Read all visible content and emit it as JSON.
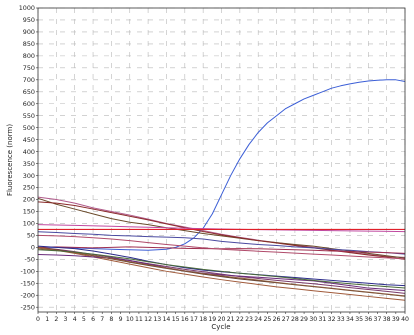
{
  "chart_data": {
    "type": "line",
    "xlabel": "Cycle",
    "ylabel": "Fluorescence (norm)",
    "xlim": [
      0,
      40
    ],
    "ylim": [
      -270,
      1000
    ],
    "grid": true,
    "y_ticks": [
      "1000",
      "950",
      "900",
      "850",
      "800",
      "750",
      "700",
      "650",
      "600",
      "550",
      "500",
      "450",
      "400",
      "350",
      "300",
      "250",
      "200",
      "150",
      "100",
      "50",
      "0",
      "-50",
      "-100",
      "-150",
      "-200",
      "-250"
    ],
    "y_tick_values": [
      1000,
      950,
      900,
      850,
      800,
      750,
      700,
      650,
      600,
      550,
      500,
      450,
      400,
      350,
      300,
      250,
      200,
      150,
      100,
      50,
      0,
      -50,
      -100,
      -150,
      -200,
      -250
    ],
    "x_ticks": [
      "0",
      "1",
      "2",
      "3",
      "4",
      "5",
      "6",
      "7",
      "8",
      "9",
      "10",
      "11",
      "12",
      "13",
      "14",
      "15",
      "16",
      "17",
      "18",
      "19",
      "20",
      "21",
      "22",
      "23",
      "24",
      "25",
      "26",
      "27",
      "28",
      "29",
      "30",
      "31",
      "32",
      "33",
      "34",
      "35",
      "36",
      "37",
      "38",
      "39",
      "40"
    ],
    "x_tick_values": [
      0,
      1,
      2,
      3,
      4,
      5,
      6,
      7,
      8,
      9,
      10,
      11,
      12,
      13,
      14,
      15,
      16,
      17,
      18,
      19,
      20,
      21,
      22,
      23,
      24,
      25,
      26,
      27,
      28,
      29,
      30,
      31,
      32,
      33,
      34,
      35,
      36,
      37,
      38,
      39,
      40
    ],
    "threshold": {
      "y": 75,
      "color": "#e0202a"
    },
    "series": [
      {
        "color": "#3b5ed6",
        "x": [
          0,
          2,
          4,
          6,
          8,
          10,
          12,
          14,
          15,
          16,
          17,
          18,
          19,
          20,
          21,
          22,
          23,
          24,
          25,
          26,
          27,
          28,
          29,
          30,
          31,
          32,
          33,
          34,
          35,
          36,
          37,
          38,
          39,
          40
        ],
        "y": [
          0,
          0,
          -2,
          -5,
          -8,
          -10,
          -12,
          -8,
          0,
          15,
          40,
          80,
          140,
          220,
          300,
          370,
          430,
          480,
          520,
          550,
          580,
          600,
          620,
          635,
          650,
          665,
          675,
          683,
          690,
          695,
          698,
          700,
          700,
          693
        ]
      },
      {
        "color": "#b05a8a",
        "x": [
          0,
          2,
          4,
          6,
          8,
          10,
          12,
          14,
          16,
          18,
          20,
          22,
          24,
          26,
          28,
          30,
          32,
          34,
          36,
          38,
          40
        ],
        "y": [
          210,
          200,
          185,
          165,
          150,
          135,
          118,
          100,
          85,
          70,
          55,
          42,
          30,
          20,
          10,
          0,
          -10,
          -20,
          -30,
          -38,
          -42
        ]
      },
      {
        "color": "#6a4a2a",
        "x": [
          0,
          2,
          4,
          6,
          8,
          10,
          12,
          14,
          16,
          18,
          20,
          22,
          24,
          26,
          28,
          30,
          32,
          34,
          36,
          38,
          40
        ],
        "y": [
          205,
          180,
          160,
          140,
          120,
          105,
          95,
          82,
          70,
          58,
          48,
          38,
          28,
          20,
          12,
          5,
          -5,
          -15,
          -25,
          -35,
          -45
        ]
      },
      {
        "color": "#8a2a2a",
        "x": [
          0,
          2,
          4,
          6,
          8,
          10,
          12,
          14,
          16,
          18,
          20,
          22,
          24,
          26,
          28,
          30,
          32,
          34,
          36,
          38,
          40
        ],
        "y": [
          190,
          185,
          175,
          160,
          145,
          130,
          115,
          98,
          82,
          66,
          52,
          40,
          28,
          18,
          8,
          -2,
          -12,
          -22,
          -32,
          -40,
          -50
        ]
      },
      {
        "color": "#c04aa0",
        "x": [
          0,
          4,
          8,
          12,
          16,
          20,
          24,
          28,
          32,
          36,
          40
        ],
        "y": [
          95,
          92,
          88,
          84,
          80,
          77,
          74,
          72,
          70,
          68,
          66
        ]
      },
      {
        "color": "#4a4aa0",
        "x": [
          0,
          2,
          4,
          6,
          8,
          10,
          12,
          14,
          16,
          18,
          20,
          22,
          24,
          26,
          28,
          30,
          32,
          34,
          36,
          38,
          40
        ],
        "y": [
          65,
          62,
          58,
          55,
          50,
          48,
          45,
          43,
          40,
          35,
          25,
          18,
          12,
          8,
          2,
          -2,
          -8,
          -12,
          -18,
          -22,
          -28
        ]
      },
      {
        "color": "#a03050",
        "x": [
          0,
          2,
          4,
          6,
          8,
          10,
          12,
          14,
          16,
          18,
          20,
          22,
          24,
          26,
          28,
          30,
          32,
          34,
          36,
          38,
          40
        ],
        "y": [
          0,
          2,
          0,
          -2,
          0,
          2,
          0,
          -2,
          -4,
          -5,
          -6,
          -5,
          -6,
          -8,
          -10,
          -12,
          -15,
          -18,
          -20,
          -22,
          -25
        ]
      },
      {
        "color": "#7a3a6a",
        "x": [
          0,
          2,
          4,
          6,
          8,
          10,
          12,
          14,
          16,
          18,
          20,
          22,
          24,
          26,
          28,
          30,
          32,
          34,
          36,
          38,
          40
        ],
        "y": [
          0,
          -8,
          -18,
          -30,
          -42,
          -55,
          -68,
          -80,
          -92,
          -102,
          -112,
          -122,
          -130,
          -138,
          -145,
          -152,
          -160,
          -168,
          -176,
          -184,
          -192
        ]
      },
      {
        "color": "#5a3a2a",
        "x": [
          0,
          2,
          4,
          6,
          8,
          10,
          12,
          14,
          16,
          18,
          20,
          22,
          24,
          26,
          28,
          30,
          32,
          34,
          36,
          38,
          40
        ],
        "y": [
          0,
          -10,
          -22,
          -35,
          -48,
          -62,
          -75,
          -88,
          -100,
          -112,
          -122,
          -132,
          -140,
          -148,
          -156,
          -164,
          -172,
          -180,
          -188,
          -196,
          -204
        ]
      },
      {
        "color": "#a05a3a",
        "x": [
          0,
          2,
          4,
          6,
          8,
          10,
          12,
          14,
          16,
          18,
          20,
          22,
          24,
          26,
          28,
          30,
          32,
          34,
          36,
          38,
          40
        ],
        "y": [
          0,
          -12,
          -25,
          -40,
          -55,
          -70,
          -85,
          -100,
          -112,
          -124,
          -135,
          -145,
          -155,
          -165,
          -173,
          -181,
          -189,
          -197,
          -205,
          -213,
          -221
        ]
      },
      {
        "color": "#6a2a7a",
        "x": [
          0,
          2,
          4,
          6,
          8,
          10,
          12,
          14,
          16,
          18,
          20,
          22,
          24,
          26,
          28,
          30,
          32,
          34,
          36,
          38,
          40
        ],
        "y": [
          -30,
          -32,
          -35,
          -40,
          -45,
          -55,
          -70,
          -85,
          -98,
          -108,
          -115,
          -120,
          -125,
          -130,
          -135,
          -140,
          -150,
          -160,
          -170,
          -175,
          -180
        ]
      },
      {
        "color": "#2a2a8a",
        "x": [
          0,
          2,
          4,
          6,
          8,
          10,
          12,
          14,
          16,
          18,
          20,
          22,
          24,
          26,
          28,
          30,
          32,
          34,
          36,
          38,
          40
        ],
        "y": [
          5,
          0,
          -5,
          -15,
          -28,
          -42,
          -58,
          -72,
          -85,
          -95,
          -102,
          -108,
          -114,
          -120,
          -126,
          -132,
          -138,
          -144,
          -150,
          -156,
          -160
        ]
      },
      {
        "color": "#8a5a3a",
        "x": [
          0,
          2,
          4,
          6,
          8,
          10,
          12,
          14,
          16,
          18,
          20,
          22,
          24,
          26,
          28,
          30,
          32,
          34,
          36,
          38,
          40
        ],
        "y": [
          -5,
          -12,
          -22,
          -34,
          -47,
          -60,
          -73,
          -86,
          -98,
          -109,
          -119,
          -128,
          -137,
          -146,
          -155,
          -163,
          -171,
          -179,
          -187,
          -195,
          -203
        ]
      },
      {
        "color": "#4a6a3a",
        "x": [
          0,
          2,
          4,
          6,
          8,
          10,
          12,
          14,
          16,
          18,
          20,
          22,
          24,
          26,
          28,
          30,
          32,
          34,
          36,
          38,
          40
        ],
        "y": [
          -10,
          -14,
          -20,
          -28,
          -38,
          -48,
          -60,
          -72,
          -82,
          -92,
          -100,
          -108,
          -115,
          -122,
          -130,
          -138,
          -145,
          -152,
          -158,
          -164,
          -170
        ]
      },
      {
        "color": "#b04a6a",
        "x": [
          0,
          2,
          4,
          6,
          8,
          10,
          12,
          14,
          16,
          18,
          20,
          22,
          24,
          26,
          28,
          30,
          32,
          34,
          36,
          38,
          40
        ],
        "y": [
          50,
          48,
          45,
          40,
          35,
          28,
          20,
          12,
          5,
          -2,
          -8,
          -12,
          -16,
          -20,
          -24,
          -28,
          -32,
          -36,
          -40,
          -44,
          -48
        ]
      }
    ]
  }
}
